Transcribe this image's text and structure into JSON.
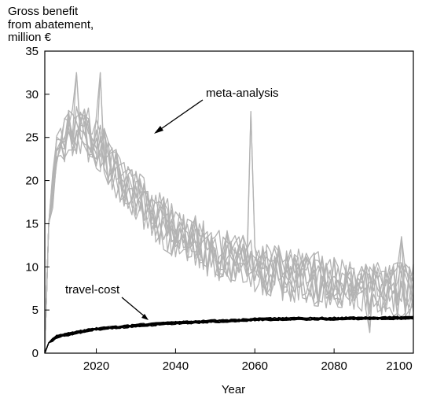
{
  "chart_data": {
    "type": "line",
    "ylabel_lines": [
      "Gross benefit",
      "from abatement,",
      "million €"
    ],
    "xlabel": "Year",
    "xlim": [
      2007,
      2100
    ],
    "ylim": [
      0,
      35
    ],
    "x_ticks": [
      2020,
      2040,
      2060,
      2080,
      2100
    ],
    "y_ticks": [
      0,
      5,
      10,
      15,
      20,
      25,
      30,
      35
    ],
    "grid": false,
    "annotations": [
      {
        "text": "meta-analysis",
        "target": [
          2034,
          25.2
        ]
      },
      {
        "text": "travel-cost",
        "target": [
          2034,
          4.3
        ]
      }
    ],
    "series": [
      {
        "group": "meta-analysis",
        "color": "#b3b3b3",
        "count": 10,
        "trend": [
          [
            2007,
            0
          ],
          [
            2008,
            15
          ],
          [
            2010,
            23
          ],
          [
            2013,
            25.5
          ],
          [
            2016,
            26
          ],
          [
            2020,
            24.5
          ],
          [
            2025,
            21
          ],
          [
            2030,
            18
          ],
          [
            2035,
            16
          ],
          [
            2040,
            14
          ],
          [
            2045,
            12.8
          ],
          [
            2050,
            11.5
          ],
          [
            2060,
            10
          ],
          [
            2070,
            9
          ],
          [
            2080,
            8.3
          ],
          [
            2090,
            7.6
          ],
          [
            2100,
            7.2
          ]
        ],
        "noise": 3.2,
        "highlights": [
          [
            2015,
            32.5
          ],
          [
            2021,
            32.5
          ],
          [
            2059,
            28
          ],
          [
            2089,
            2.4
          ],
          [
            2097,
            13.5
          ]
        ]
      },
      {
        "group": "travel-cost",
        "color": "#000000",
        "count": 12,
        "trend": [
          [
            2007,
            0
          ],
          [
            2008,
            1.2
          ],
          [
            2010,
            1.9
          ],
          [
            2015,
            2.4
          ],
          [
            2020,
            2.8
          ],
          [
            2030,
            3.2
          ],
          [
            2040,
            3.5
          ],
          [
            2050,
            3.7
          ],
          [
            2060,
            3.9
          ],
          [
            2070,
            4.0
          ],
          [
            2080,
            4.0
          ],
          [
            2090,
            4.05
          ],
          [
            2100,
            4.1
          ]
        ],
        "noise": 0.2
      }
    ]
  }
}
